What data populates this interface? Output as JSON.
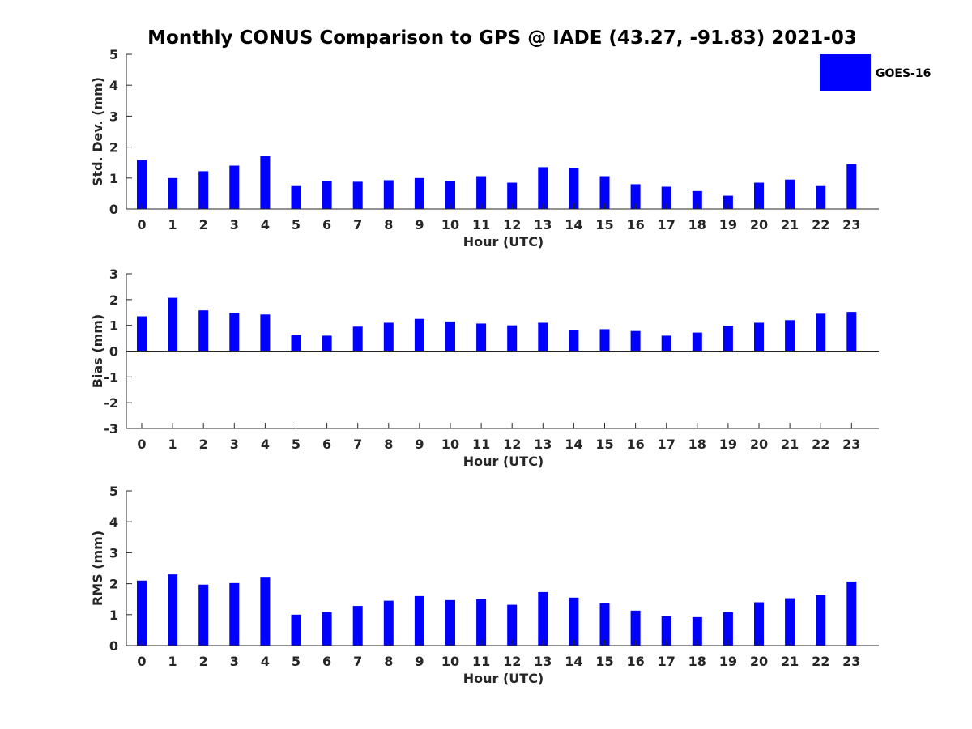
{
  "figure": {
    "title": "Monthly CONUS Comparison to GPS @ IADE (43.27, -91.83) 2021-03"
  },
  "legend": {
    "label": "GOES-16",
    "color": "#0000ff"
  },
  "chart_data": [
    {
      "type": "bar",
      "title": "",
      "xlabel": "Hour (UTC)",
      "ylabel": "Std. Dev. (mm)",
      "ylim": [
        0,
        5
      ],
      "yticks": [
        0,
        1,
        2,
        3,
        4,
        5
      ],
      "categories": [
        "0",
        "1",
        "2",
        "3",
        "4",
        "5",
        "6",
        "7",
        "8",
        "9",
        "10",
        "11",
        "12",
        "13",
        "14",
        "15",
        "16",
        "17",
        "18",
        "19",
        "20",
        "21",
        "22",
        "23"
      ],
      "series": [
        {
          "name": "GOES-16",
          "color": "#0000ff",
          "values": [
            1.58,
            1.0,
            1.22,
            1.4,
            1.72,
            0.74,
            0.9,
            0.88,
            0.93,
            1.0,
            0.9,
            1.06,
            0.85,
            1.35,
            1.32,
            1.06,
            0.8,
            0.72,
            0.58,
            0.43,
            0.85,
            0.95,
            0.74,
            1.45
          ]
        }
      ]
    },
    {
      "type": "bar",
      "title": "",
      "xlabel": "Hour (UTC)",
      "ylabel": "Bias (mm)",
      "ylim": [
        -3,
        3
      ],
      "yticks": [
        -3,
        -2,
        -1,
        0,
        1,
        2,
        3
      ],
      "categories": [
        "0",
        "1",
        "2",
        "3",
        "4",
        "5",
        "6",
        "7",
        "8",
        "9",
        "10",
        "11",
        "12",
        "13",
        "14",
        "15",
        "16",
        "17",
        "18",
        "19",
        "20",
        "21",
        "22",
        "23"
      ],
      "series": [
        {
          "name": "GOES-16",
          "color": "#0000ff",
          "values": [
            1.35,
            2.07,
            1.58,
            1.48,
            1.42,
            0.62,
            0.6,
            0.95,
            1.1,
            1.25,
            1.15,
            1.07,
            1.0,
            1.1,
            0.8,
            0.85,
            0.78,
            0.6,
            0.72,
            0.98,
            1.1,
            1.2,
            1.45,
            1.52
          ]
        }
      ]
    },
    {
      "type": "bar",
      "title": "",
      "xlabel": "Hour (UTC)",
      "ylabel": "RMS (mm)",
      "ylim": [
        0,
        5
      ],
      "yticks": [
        0,
        1,
        2,
        3,
        4,
        5
      ],
      "categories": [
        "0",
        "1",
        "2",
        "3",
        "4",
        "5",
        "6",
        "7",
        "8",
        "9",
        "10",
        "11",
        "12",
        "13",
        "14",
        "15",
        "16",
        "17",
        "18",
        "19",
        "20",
        "21",
        "22",
        "23"
      ],
      "series": [
        {
          "name": "GOES-16",
          "color": "#0000ff",
          "values": [
            2.1,
            2.3,
            1.97,
            2.02,
            2.22,
            1.0,
            1.08,
            1.28,
            1.45,
            1.6,
            1.47,
            1.5,
            1.32,
            1.73,
            1.55,
            1.37,
            1.13,
            0.95,
            0.92,
            1.08,
            1.4,
            1.53,
            1.63,
            2.07
          ]
        }
      ]
    }
  ]
}
